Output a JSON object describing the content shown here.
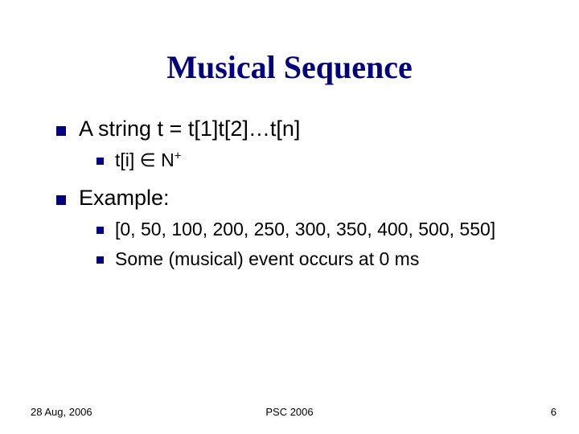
{
  "title": "Musical Sequence",
  "bullets": {
    "b1": "A string t = t[1]t[2]…t[n]",
    "b1_1_pre": "t[i] ",
    "b1_1_sym": "∈",
    "b1_1_post": "  N",
    "b1_1_sup": "+",
    "b2": "Example:",
    "b2_1": "[0, 50, 100, 200, 250, 300, 350, 400, 500, 550]",
    "b2_2": "Some (musical) event occurs at 0 ms"
  },
  "footer": {
    "date": "28 Aug, 2006",
    "center": "PSC 2006",
    "page": "6"
  },
  "colors": {
    "title": "#000080",
    "bullet": "#000080",
    "text": "#000000",
    "background": "#ffffff"
  },
  "fonts": {
    "title_family": "Times New Roman",
    "title_size_pt": 40,
    "body_family": "Verdana",
    "lvl1_size_pt": 27,
    "lvl2_size_pt": 23,
    "footer_size_pt": 13
  }
}
